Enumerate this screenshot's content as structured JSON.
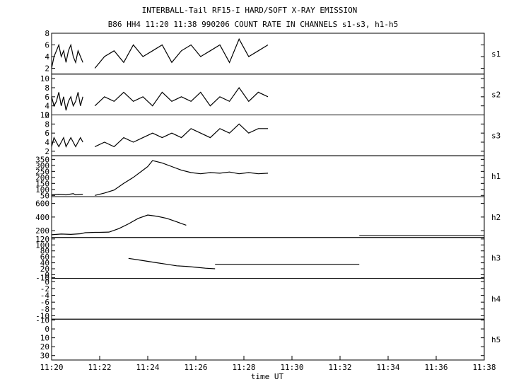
{
  "title": "INTERBALL-Tail RF15-I HARD/SOFT X-RAY EMISSION",
  "subtitle": "B86 HH4 11:20 11:38 990206  COUNT RATE IN CHANNELS s1-s3, h1-h5",
  "chart_data": {
    "type": "line",
    "title": "INTERBALL-Tail RF15-I HARD/SOFT X-RAY EMISSION",
    "subtitle": "B86 HH4 11:20 11:38 990206  COUNT RATE IN CHANNELS s1-s3, h1-h5",
    "xlabel": "time UT",
    "x_ticks": [
      "11:20",
      "11:22",
      "11:24",
      "11:26",
      "11:28",
      "11:30",
      "11:32",
      "11:34",
      "11:36",
      "11:38"
    ],
    "xlim_minutes": [
      0,
      18
    ],
    "grid": false,
    "panels": [
      {
        "name": "s1",
        "ylim": [
          1,
          8
        ],
        "y_ticks": [
          "8",
          "6",
          "4",
          "2"
        ],
        "y_tick_values": [
          8,
          6,
          4,
          2
        ],
        "segments": [
          {
            "x": [
              0.0,
              0.1,
              0.2,
              0.3,
              0.4,
              0.5,
              0.6,
              0.7,
              0.8,
              0.9,
              1.0,
              1.1,
              1.2,
              1.3
            ],
            "y": [
              2,
              4,
              5,
              6,
              4,
              5,
              3,
              5,
              6,
              4,
              3,
              5,
              4,
              3
            ]
          },
          {
            "x": [
              1.8,
              2.2,
              2.6,
              3.0,
              3.4,
              3.8,
              4.2,
              4.6,
              5.0,
              5.4,
              5.8,
              6.2,
              6.6,
              7.0,
              7.4,
              7.8,
              8.2,
              8.6,
              9.0
            ],
            "y": [
              2,
              4,
              5,
              3,
              6,
              4,
              5,
              6,
              3,
              5,
              6,
              4,
              5,
              6,
              3,
              7,
              4,
              5,
              6
            ]
          }
        ]
      },
      {
        "name": "s2",
        "ylim": [
          2,
          11
        ],
        "y_ticks": [
          "10",
          "8",
          "6",
          "4",
          "2"
        ],
        "y_tick_values": [
          10,
          8,
          6,
          4,
          2
        ],
        "segments": [
          {
            "x": [
              0.0,
              0.1,
              0.2,
              0.3,
              0.4,
              0.5,
              0.6,
              0.7,
              0.8,
              0.9,
              1.0,
              1.1,
              1.2,
              1.3
            ],
            "y": [
              6,
              4,
              5,
              7,
              4,
              6,
              3,
              5,
              6,
              4,
              5,
              7,
              4,
              6
            ]
          },
          {
            "x": [
              1.8,
              2.2,
              2.6,
              3.0,
              3.4,
              3.8,
              4.2,
              4.6,
              5.0,
              5.4,
              5.8,
              6.2,
              6.6,
              7.0,
              7.4,
              7.8,
              8.2,
              8.6,
              9.0
            ],
            "y": [
              4,
              6,
              5,
              7,
              5,
              6,
              4,
              7,
              5,
              6,
              5,
              7,
              4,
              6,
              5,
              8,
              5,
              7,
              6
            ]
          }
        ]
      },
      {
        "name": "s3",
        "ylim": [
          1,
          10
        ],
        "y_ticks": [
          "10",
          "8",
          "6",
          "4",
          "2"
        ],
        "y_tick_values": [
          10,
          8,
          6,
          4,
          2
        ],
        "segments": [
          {
            "x": [
              0.0,
              0.1,
              0.2,
              0.3,
              0.4,
              0.5,
              0.6,
              0.7,
              0.8,
              0.9,
              1.0,
              1.1,
              1.2,
              1.3
            ],
            "y": [
              3,
              5,
              4,
              3,
              4,
              5,
              3,
              4,
              5,
              4,
              3,
              4,
              5,
              4
            ]
          },
          {
            "x": [
              1.8,
              2.2,
              2.6,
              3.0,
              3.4,
              3.8,
              4.2,
              4.6,
              5.0,
              5.4,
              5.8,
              6.2,
              6.6,
              7.0,
              7.4,
              7.8,
              8.2,
              8.6,
              9.0
            ],
            "y": [
              3,
              4,
              3,
              5,
              4,
              5,
              6,
              5,
              6,
              5,
              7,
              6,
              5,
              7,
              6,
              8,
              6,
              7,
              7
            ]
          }
        ]
      },
      {
        "name": "h1",
        "ylim": [
          40,
          380
        ],
        "y_ticks": [
          "350",
          "300",
          "250",
          "200",
          "150",
          "100",
          "50"
        ],
        "y_tick_values": [
          350,
          300,
          250,
          200,
          150,
          100,
          50
        ],
        "segments": [
          {
            "x": [
              0.0,
              0.3,
              0.6,
              0.9,
              1.0,
              1.3
            ],
            "y": [
              55,
              60,
              55,
              65,
              55,
              60
            ]
          },
          {
            "x": [
              1.8,
              2.2,
              2.6,
              3.0,
              3.4,
              3.8,
              4.0,
              4.2,
              4.6,
              5.0,
              5.4,
              5.8,
              6.2,
              6.6,
              7.0,
              7.4,
              7.8,
              8.2,
              8.6,
              9.0
            ],
            "y": [
              50,
              70,
              95,
              150,
              200,
              260,
              290,
              340,
              320,
              290,
              260,
              240,
              230,
              240,
              235,
              245,
              230,
              240,
              230,
              235
            ]
          }
        ]
      },
      {
        "name": "h2",
        "ylim": [
          100,
          700
        ],
        "y_ticks": [
          "600",
          "400",
          "200"
        ],
        "y_tick_values": [
          600,
          400,
          200
        ],
        "segments": [
          {
            "x": [
              0.0,
              0.4,
              0.8,
              1.2,
              1.4,
              1.8,
              2.0,
              2.4
            ],
            "y": [
              140,
              150,
              145,
              155,
              170,
              175,
              175,
              180
            ]
          },
          {
            "x": [
              2.4,
              2.8,
              3.2,
              3.6,
              4.0,
              4.4,
              4.8,
              5.2,
              5.6
            ],
            "y": [
              180,
              230,
              300,
              380,
              430,
              410,
              380,
              330,
              280
            ]
          },
          {
            "x": [
              12.8,
              18.0
            ],
            "y": [
              125,
              125
            ]
          }
        ]
      },
      {
        "name": "h3",
        "ylim": [
          -12,
          125
        ],
        "y_ticks": [
          "120",
          "100",
          "80",
          "60",
          "40",
          "20",
          "0",
          "-10"
        ],
        "y_tick_values": [
          120,
          100,
          80,
          60,
          40,
          20,
          0,
          -10
        ],
        "segments": [
          {
            "x": [
              3.2,
              3.6,
              4.0,
              4.4,
              4.8,
              5.2,
              5.6,
              6.0,
              6.4,
              6.8
            ],
            "y": [
              55,
              50,
              45,
              40,
              35,
              30,
              28,
              25,
              22,
              20
            ]
          },
          {
            "x": [
              6.8,
              12.8
            ],
            "y": [
              35,
              35
            ]
          }
        ]
      },
      {
        "name": "h4",
        "ylim": [
          -11,
          1
        ],
        "y_ticks": [
          "0",
          "-2",
          "-4",
          "-6",
          "-8",
          "-10"
        ],
        "y_tick_values": [
          0,
          -2,
          -4,
          -6,
          -8,
          -10
        ],
        "segments": []
      },
      {
        "name": "h5",
        "ylim": [
          -11,
          35
        ],
        "y_ticks": [
          "-10",
          "0",
          "10",
          "20",
          "30"
        ],
        "y_tick_values": [
          -10,
          0,
          10,
          20,
          30
        ],
        "y_inverted": true,
        "segments": []
      }
    ]
  }
}
